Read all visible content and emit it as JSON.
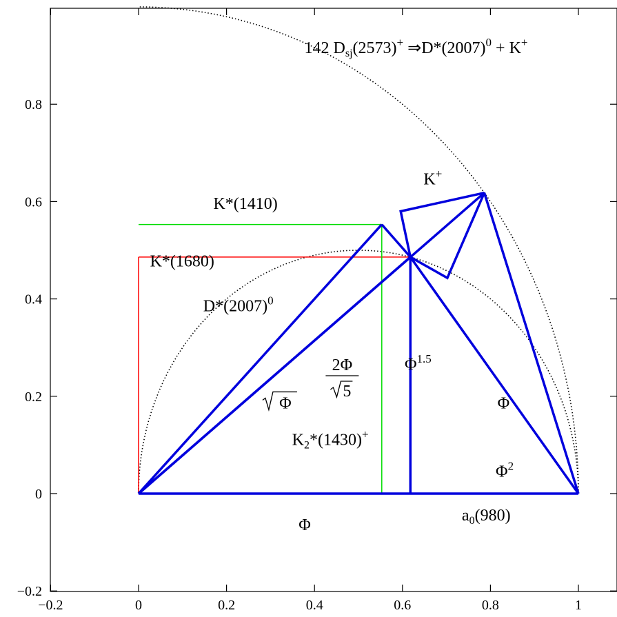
{
  "chart_data": {
    "type": "diagram",
    "xlim": [
      -0.2,
      1.1
    ],
    "ylim": [
      -0.2,
      1.0
    ],
    "x_ticks": [
      {
        "value": -0.2,
        "label": "−0.2"
      },
      {
        "value": 0,
        "label": "0"
      },
      {
        "value": 0.2,
        "label": "0.2"
      },
      {
        "value": 0.4,
        "label": "0.4"
      },
      {
        "value": 0.6,
        "label": "0.6"
      },
      {
        "value": 0.8,
        "label": "0.8"
      },
      {
        "value": 1,
        "label": "1"
      }
    ],
    "y_ticks": [
      {
        "value": -0.2,
        "label": "−0.2"
      },
      {
        "value": 0,
        "label": "0"
      },
      {
        "value": 0.2,
        "label": "0.2"
      },
      {
        "value": 0.4,
        "label": "0.4"
      },
      {
        "value": 0.6,
        "label": "0.6"
      },
      {
        "value": 0.8,
        "label": "0.8"
      }
    ],
    "grid": false,
    "colors": {
      "blue": "#0000dd",
      "red": "#ff0000",
      "green": "#00dd00",
      "dotted": "#000000"
    },
    "circles": [
      {
        "name": "outer-circle",
        "cx": 0,
        "cy": 0,
        "r": 1.0,
        "from_deg": 0,
        "to_deg": 90
      },
      {
        "name": "inner-circle",
        "cx": 0.5,
        "cy": 0,
        "r": 0.5,
        "from_deg": 0,
        "to_deg": 180
      }
    ],
    "lines": [
      {
        "name": "red-rect-top",
        "color": "red",
        "width": 1.5,
        "x": [
          0,
          0.618
        ],
        "y": [
          0.486,
          0.486
        ]
      },
      {
        "name": "red-rect-left",
        "color": "red",
        "width": 1.5,
        "x": [
          0,
          0
        ],
        "y": [
          0,
          0.486
        ]
      },
      {
        "name": "green-rect-top",
        "color": "green",
        "width": 1.5,
        "x": [
          0,
          0.553
        ],
        "y": [
          0.553,
          0.553
        ]
      },
      {
        "name": "green-rect-right",
        "color": "green",
        "width": 1.5,
        "x": [
          0.553,
          0.553
        ],
        "y": [
          0,
          0.553
        ]
      },
      {
        "name": "base-line",
        "color": "blue",
        "width": 3.5,
        "x": [
          0,
          1
        ],
        "y": [
          0,
          0
        ]
      },
      {
        "name": "big-triangle-left",
        "color": "blue",
        "width": 3.5,
        "x": [
          0,
          0.786
        ],
        "y": [
          0,
          0.618
        ]
      },
      {
        "name": "big-triangle-right",
        "color": "blue",
        "width": 3.5,
        "x": [
          0.786,
          1
        ],
        "y": [
          0.618,
          0
        ]
      },
      {
        "name": "small-triangle-left",
        "color": "blue",
        "width": 3.5,
        "x": [
          0,
          0.618
        ],
        "y": [
          0,
          0.486
        ]
      },
      {
        "name": "small-triangle-right",
        "color": "blue",
        "width": 3.5,
        "x": [
          0.618,
          1
        ],
        "y": [
          0.486,
          0
        ]
      },
      {
        "name": "vertical-line",
        "color": "blue",
        "width": 3.5,
        "x": [
          0.618,
          0.618
        ],
        "y": [
          0,
          0.486
        ]
      },
      {
        "name": "green-peak-left",
        "color": "blue",
        "width": 3.5,
        "x": [
          0,
          0.553
        ],
        "y": [
          0,
          0.553
        ]
      },
      {
        "name": "green-peak-right",
        "color": "blue",
        "width": 3.5,
        "x": [
          0.553,
          0.618
        ],
        "y": [
          0.553,
          0.486
        ]
      },
      {
        "name": "kite-upper",
        "color": "blue",
        "width": 3.5,
        "x": [
          0.618,
          0.596,
          0.786
        ],
        "y": [
          0.486,
          0.58,
          0.618
        ]
      },
      {
        "name": "kite-lower",
        "color": "blue",
        "width": 3.5,
        "x": [
          0.618,
          0.702,
          0.786
        ],
        "y": [
          0.486,
          0.443,
          0.618
        ]
      }
    ],
    "annotations": [
      {
        "name": "annotation-title",
        "x": 0.377,
        "y": 0.905,
        "parts": [
          [
            "",
            "142  D"
          ],
          [
            "sub",
            "sj"
          ],
          [
            "",
            "(2573)"
          ],
          [
            "sup",
            "+"
          ],
          [
            "",
            " ⇒D*(2007)"
          ],
          [
            "sup",
            "0"
          ],
          [
            "",
            " + K"
          ],
          [
            "sup",
            "+"
          ]
        ]
      },
      {
        "name": "annotation-k-plus",
        "x": 0.648,
        "y": 0.635,
        "parts": [
          [
            "",
            "K"
          ],
          [
            "sup",
            "+"
          ]
        ]
      },
      {
        "name": "annotation-k1410",
        "x": 0.17,
        "y": 0.585,
        "parts": [
          [
            "",
            "K*(1410)"
          ]
        ]
      },
      {
        "name": "annotation-k1680",
        "x": 0.026,
        "y": 0.467,
        "parts": [
          [
            "",
            "K*(1680)"
          ]
        ]
      },
      {
        "name": "annotation-d2007",
        "x": 0.147,
        "y": 0.375,
        "parts": [
          [
            "",
            "D*(2007)"
          ],
          [
            "sup",
            "0"
          ]
        ]
      },
      {
        "name": "annotation-phi-15",
        "x": 0.605,
        "y": 0.255,
        "parts": [
          [
            "",
            "Φ"
          ],
          [
            "sup",
            "1.5"
          ]
        ]
      },
      {
        "name": "annotation-phi-right",
        "x": 0.816,
        "y": 0.175,
        "parts": [
          [
            "",
            "Φ"
          ]
        ]
      },
      {
        "name": "annotation-k2-1430",
        "x": 0.349,
        "y": 0.1,
        "parts": [
          [
            "",
            "K"
          ],
          [
            "sub",
            "2"
          ],
          [
            "",
            "*(1430)"
          ],
          [
            "sup",
            "+"
          ]
        ]
      },
      {
        "name": "annotation-phi-squared",
        "x": 0.812,
        "y": 0.035,
        "parts": [
          [
            "",
            "Φ"
          ],
          [
            "sup",
            "2"
          ]
        ]
      },
      {
        "name": "annotation-a0-980",
        "x": 0.735,
        "y": -0.055,
        "parts": [
          [
            "",
            "a"
          ],
          [
            "sub",
            "0"
          ],
          [
            "",
            "(980)"
          ]
        ]
      },
      {
        "name": "annotation-phi-base",
        "x": 0.364,
        "y": -0.075,
        "parts": [
          [
            "",
            "Φ"
          ]
        ]
      }
    ],
    "fraction": {
      "name": "annotation-two-phi-over-sqrt5",
      "x": 0.463,
      "y": 0.245,
      "numerator": "2Φ",
      "denominator": "5"
    },
    "sqrt_label": {
      "name": "annotation-sqrt-phi",
      "x": 0.282,
      "y": 0.175,
      "radicand": "Φ"
    }
  }
}
